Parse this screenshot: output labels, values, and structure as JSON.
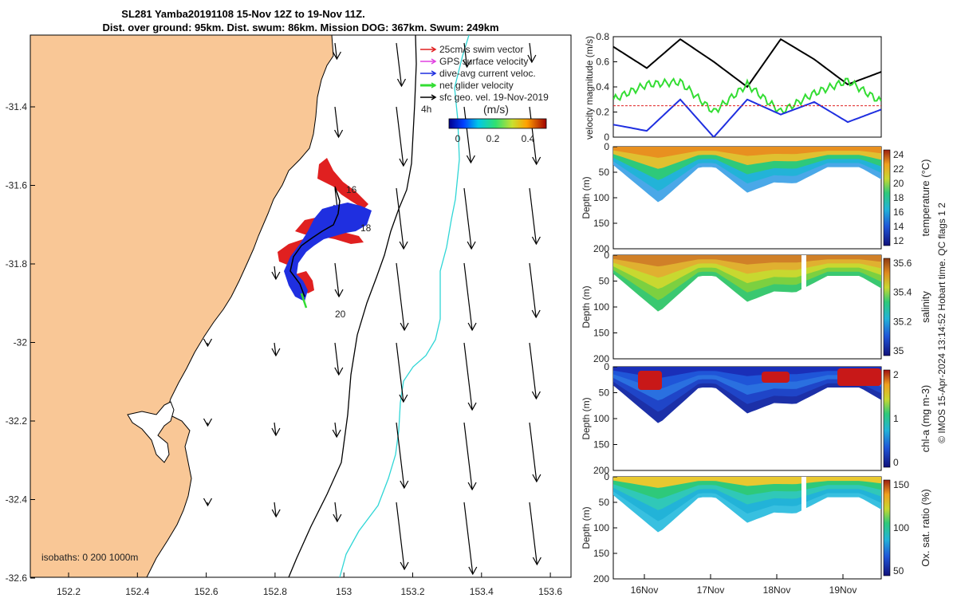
{
  "title": {
    "line1": "SL281 Yamba20191108 15-Nov 12Z to 19-Nov 11Z.",
    "line2": "Dist. over ground: 95km. Dist. swum: 86km. Mission DOG: 367km. Swum: 249km"
  },
  "credit": "© IMOS 15-Apr-2024 13:14:52 Hobart time. QC flags 1  2",
  "map": {
    "lon_ticks": [
      "152.2",
      "152.4",
      "152.6",
      "152.8",
      "153",
      "153.2",
      "153.4",
      "153.6"
    ],
    "lat_ticks": [
      "-31.4",
      "-31.6",
      "-31.8",
      "-32",
      "-32.2",
      "-32.4",
      "-32.6"
    ],
    "lon_range": [
      152.07,
      153.68
    ],
    "lat_range": [
      -32.6,
      -31.2
    ],
    "legend": [
      {
        "label": "25cm/s swim vector",
        "color": "#e02020"
      },
      {
        "label": "GPS surface velocity",
        "color": "#e040e0"
      },
      {
        "label": "dive-avg current veloc.",
        "color": "#1f2fe0"
      },
      {
        "label": "net glider velocity",
        "color": "#33dd33"
      },
      {
        "label": "sfc geo. vel. 19-Nov-2019",
        "color": "#000000"
      }
    ],
    "scale_label": "4h",
    "colorbar": {
      "label": "(m/s)",
      "ticks": [
        "0",
        "0.2",
        "0.4"
      ]
    },
    "track_labels": [
      "16",
      "18",
      "20"
    ],
    "isobaths_label": "isobaths: 0   200  1000m"
  },
  "chart_data": [
    {
      "type": "line",
      "ylabel": "velocity magnitude (m/s)",
      "ylim": [
        0,
        0.8
      ],
      "yticks": [
        "0",
        "0.2",
        "0.4",
        "0.6",
        "0.8"
      ],
      "x": [
        "15-Nov 12Z",
        "16-Nov",
        "16-Nov 12Z",
        "17-Nov",
        "17-Nov 12Z",
        "18-Nov",
        "18-Nov 12Z",
        "19-Nov",
        "19-Nov 11Z"
      ],
      "series": [
        {
          "color": "#000000",
          "values": [
            0.72,
            0.55,
            0.78,
            0.6,
            0.4,
            0.78,
            0.62,
            0.42,
            0.52
          ]
        },
        {
          "color": "#33dd33",
          "values": [
            0.3,
            0.42,
            0.44,
            0.2,
            0.42,
            0.2,
            0.35,
            0.45,
            0.28
          ]
        },
        {
          "color": "#1f2fe0",
          "values": [
            0.1,
            0.05,
            0.3,
            0.0,
            0.3,
            0.18,
            0.28,
            0.12,
            0.22
          ]
        },
        {
          "color": "#e02020",
          "values": [
            0.25,
            0.25,
            0.25,
            0.25,
            0.25,
            0.25,
            0.25,
            0.25,
            0.25
          ]
        }
      ]
    },
    {
      "type": "heatmap",
      "name": "temperature",
      "cbar_label": "temperature (°C)",
      "cbar_ticks": [
        "12",
        "14",
        "16",
        "18",
        "20",
        "22",
        "24"
      ],
      "ylabel": "Depth (m)",
      "yticks": [
        "0",
        "50",
        "100",
        "150",
        "200"
      ]
    },
    {
      "type": "heatmap",
      "name": "salinity",
      "cbar_label": "salinity",
      "cbar_ticks": [
        "35",
        "35.2",
        "35.4",
        "35.6"
      ],
      "ylabel": "Depth (m)",
      "yticks": [
        "0",
        "50",
        "100",
        "150",
        "200"
      ]
    },
    {
      "type": "heatmap",
      "name": "chl",
      "cbar_label": "chl-a (mg m-3)",
      "cbar_ticks": [
        "0",
        "1",
        "2"
      ],
      "ylabel": "Depth (m)",
      "yticks": [
        "0",
        "50",
        "100",
        "150",
        "200"
      ]
    },
    {
      "type": "heatmap",
      "name": "oxygen",
      "cbar_label": "Ox. sat. ratio (%)",
      "cbar_ticks": [
        "50",
        "100",
        "150"
      ],
      "ylabel": "Depth (m)",
      "yticks": [
        "0",
        "50",
        "100",
        "150",
        "200"
      ],
      "xticks": [
        "16Nov",
        "17Nov",
        "18Nov",
        "19Nov"
      ]
    }
  ],
  "colors": {
    "land": "#f9c796",
    "track_red": "#e02020",
    "track_blue": "#1f2fe0",
    "current_line": "#2fd6d6"
  }
}
